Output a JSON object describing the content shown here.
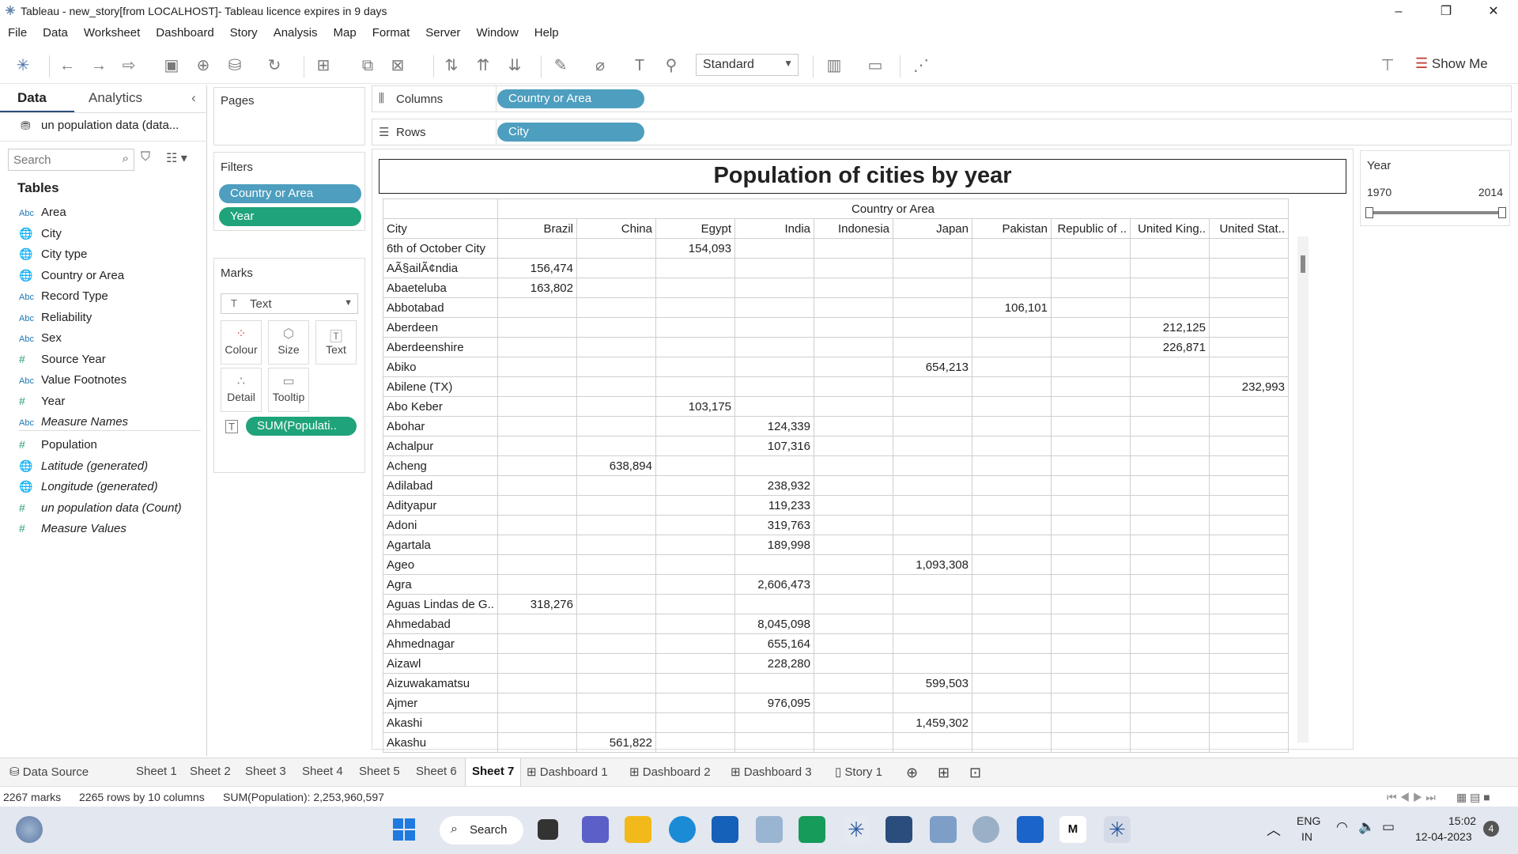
{
  "window": {
    "title": "Tableau - new_story[from LOCALHOST]- Tableau licence expires in 9 days",
    "minimize": "–",
    "restore": "❐",
    "close": "✕"
  },
  "menu": [
    "File",
    "Data",
    "Worksheet",
    "Dashboard",
    "Story",
    "Analysis",
    "Map",
    "Format",
    "Server",
    "Window",
    "Help"
  ],
  "toolbar": {
    "fit_label": "Standard",
    "show_me_label": "Show Me"
  },
  "data_pane": {
    "tab_data": "Data",
    "tab_analytics": "Analytics",
    "datasource": "un population data (data...",
    "search_placeholder": "Search",
    "tables_header": "Tables",
    "fields": [
      {
        "icon": "Abc",
        "name": "Area",
        "italic": false
      },
      {
        "icon": "globe",
        "name": "City",
        "italic": false
      },
      {
        "icon": "globe",
        "name": "City type",
        "italic": false
      },
      {
        "icon": "globe",
        "name": "Country or Area",
        "italic": false
      },
      {
        "icon": "Abc",
        "name": "Record Type",
        "italic": false
      },
      {
        "icon": "Abc",
        "name": "Reliability",
        "italic": false
      },
      {
        "icon": "Abc",
        "name": "Sex",
        "italic": false
      },
      {
        "icon": "#",
        "name": "Source Year",
        "italic": false
      },
      {
        "icon": "Abc",
        "name": "Value Footnotes",
        "italic": false
      },
      {
        "icon": "#",
        "name": "Year",
        "italic": false
      },
      {
        "icon": "Abc",
        "name": "Measure Names",
        "italic": true
      }
    ],
    "measures": [
      {
        "icon": "#",
        "name": "Population",
        "italic": false
      },
      {
        "icon": "globe",
        "name": "Latitude (generated)",
        "italic": true
      },
      {
        "icon": "globe",
        "name": "Longitude (generated)",
        "italic": true
      },
      {
        "icon": "#",
        "name": "un population data (Count)",
        "italic": true
      },
      {
        "icon": "#",
        "name": "Measure Values",
        "italic": true
      }
    ]
  },
  "shelves": {
    "pages": "Pages",
    "filters": "Filters",
    "filter_pills": [
      "Country or Area",
      "Year"
    ],
    "marks": "Marks",
    "mark_type": "Text",
    "mark_cards": [
      "Colour",
      "Size",
      "Text",
      "Detail",
      "Tooltip"
    ],
    "sum_pill": "SUM(Populati..",
    "columns_label": "Columns",
    "columns_pill": "Country or Area",
    "rows_label": "Rows",
    "rows_pill": "City"
  },
  "viz": {
    "title": "Population of cities by year",
    "col_group_header": "Country or Area",
    "row_header": "City",
    "countries": [
      "Brazil",
      "China",
      "Egypt",
      "India",
      "Indonesia",
      "Japan",
      "Pakistan",
      "Republic of ..",
      "United King..",
      "United Stat.."
    ],
    "rows": [
      {
        "city": "6th of October City",
        "cells": [
          "",
          "",
          "154,093",
          "",
          "",
          "",
          "",
          "",
          "",
          ""
        ]
      },
      {
        "city": "AÃ§ailÃ¢ndia",
        "cells": [
          "156,474",
          "",
          "",
          "",
          "",
          "",
          "",
          "",
          "",
          ""
        ]
      },
      {
        "city": "Abaeteluba",
        "cells": [
          "163,802",
          "",
          "",
          "",
          "",
          "",
          "",
          "",
          "",
          ""
        ]
      },
      {
        "city": "Abbotabad",
        "cells": [
          "",
          "",
          "",
          "",
          "",
          "",
          "106,101",
          "",
          "",
          ""
        ]
      },
      {
        "city": "Aberdeen",
        "cells": [
          "",
          "",
          "",
          "",
          "",
          "",
          "",
          "",
          "212,125",
          ""
        ]
      },
      {
        "city": "Aberdeenshire",
        "cells": [
          "",
          "",
          "",
          "",
          "",
          "",
          "",
          "",
          "226,871",
          ""
        ]
      },
      {
        "city": "Abiko",
        "cells": [
          "",
          "",
          "",
          "",
          "",
          "654,213",
          "",
          "",
          "",
          ""
        ]
      },
      {
        "city": "Abilene (TX)",
        "cells": [
          "",
          "",
          "",
          "",
          "",
          "",
          "",
          "",
          "",
          "232,993"
        ]
      },
      {
        "city": "Abo Keber",
        "cells": [
          "",
          "",
          "103,175",
          "",
          "",
          "",
          "",
          "",
          "",
          ""
        ]
      },
      {
        "city": "Abohar",
        "cells": [
          "",
          "",
          "",
          "124,339",
          "",
          "",
          "",
          "",
          "",
          ""
        ]
      },
      {
        "city": "Achalpur",
        "cells": [
          "",
          "",
          "",
          "107,316",
          "",
          "",
          "",
          "",
          "",
          ""
        ]
      },
      {
        "city": "Acheng",
        "cells": [
          "",
          "638,894",
          "",
          "",
          "",
          "",
          "",
          "",
          "",
          ""
        ]
      },
      {
        "city": "Adilabad",
        "cells": [
          "",
          "",
          "",
          "238,932",
          "",
          "",
          "",
          "",
          "",
          ""
        ]
      },
      {
        "city": "Adityapur",
        "cells": [
          "",
          "",
          "",
          "119,233",
          "",
          "",
          "",
          "",
          "",
          ""
        ]
      },
      {
        "city": "Adoni",
        "cells": [
          "",
          "",
          "",
          "319,763",
          "",
          "",
          "",
          "",
          "",
          ""
        ]
      },
      {
        "city": "Agartala",
        "cells": [
          "",
          "",
          "",
          "189,998",
          "",
          "",
          "",
          "",
          "",
          ""
        ]
      },
      {
        "city": "Ageo",
        "cells": [
          "",
          "",
          "",
          "",
          "",
          "1,093,308",
          "",
          "",
          "",
          ""
        ]
      },
      {
        "city": "Agra",
        "cells": [
          "",
          "",
          "",
          "2,606,473",
          "",
          "",
          "",
          "",
          "",
          ""
        ]
      },
      {
        "city": "Aguas Lindas de G..",
        "cells": [
          "318,276",
          "",
          "",
          "",
          "",
          "",
          "",
          "",
          "",
          ""
        ]
      },
      {
        "city": "Ahmedabad",
        "cells": [
          "",
          "",
          "",
          "8,045,098",
          "",
          "",
          "",
          "",
          "",
          ""
        ]
      },
      {
        "city": "Ahmednagar",
        "cells": [
          "",
          "",
          "",
          "655,164",
          "",
          "",
          "",
          "",
          "",
          ""
        ]
      },
      {
        "city": "Aizawl",
        "cells": [
          "",
          "",
          "",
          "228,280",
          "",
          "",
          "",
          "",
          "",
          ""
        ]
      },
      {
        "city": "Aizuwakamatsu",
        "cells": [
          "",
          "",
          "",
          "",
          "",
          "599,503",
          "",
          "",
          "",
          ""
        ]
      },
      {
        "city": "Ajmer",
        "cells": [
          "",
          "",
          "",
          "976,095",
          "",
          "",
          "",
          "",
          "",
          ""
        ]
      },
      {
        "city": "Akashi",
        "cells": [
          "",
          "",
          "",
          "",
          "",
          "1,459,302",
          "",
          "",
          "",
          ""
        ]
      },
      {
        "city": "Akashu",
        "cells": [
          "",
          "561,822",
          "",
          "",
          "",
          "",
          "",
          "",
          "",
          ""
        ]
      }
    ]
  },
  "year_filter": {
    "title": "Year",
    "min": "1970",
    "max": "2014"
  },
  "sheet_tabs": {
    "data_source": "Data Source",
    "tabs": [
      "Sheet 1",
      "Sheet 2",
      "Sheet 3",
      "Sheet 4",
      "Sheet 5",
      "Sheet 6",
      "Sheet 7",
      "Dashboard 1",
      "Dashboard 2",
      "Dashboard 3",
      "Story 1"
    ],
    "active": "Sheet 7"
  },
  "status": {
    "marks": "2267 marks",
    "rows_cols": "2265 rows by 10 columns",
    "sum": "SUM(Population): 2,253,960,597"
  },
  "taskbar": {
    "search": "Search",
    "lang1": "ENG",
    "lang2": "IN",
    "time": "15:02",
    "date": "12-04-2023",
    "notif": "4"
  }
}
